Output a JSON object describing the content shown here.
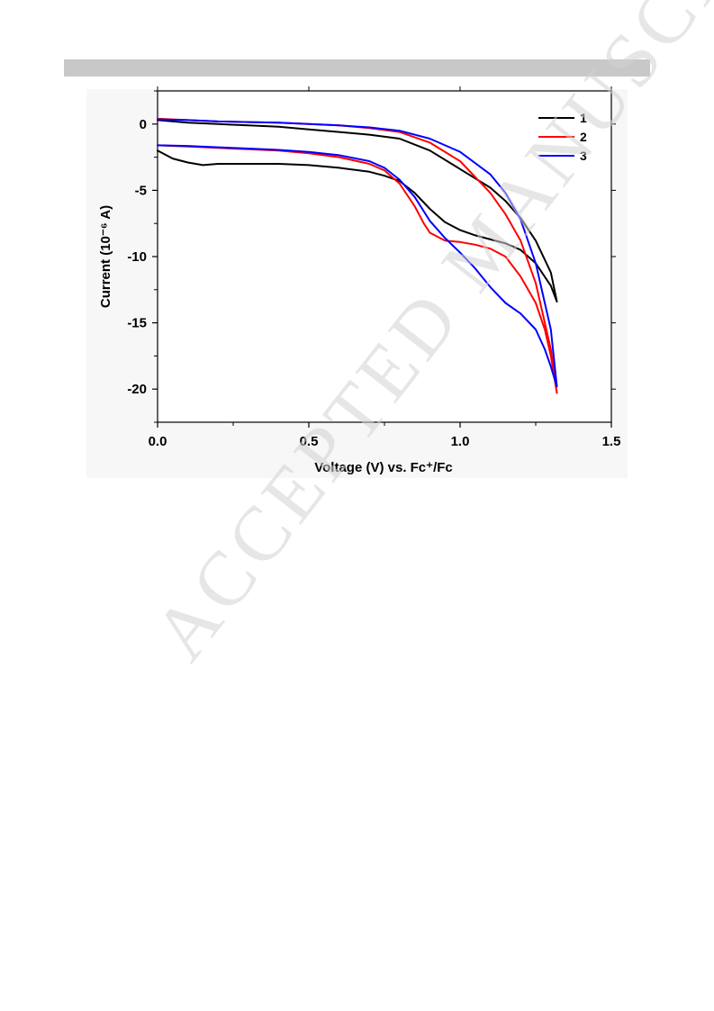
{
  "watermark": "ACCEPTED MANUSCRIPT",
  "chart_data": {
    "type": "line",
    "xlabel": "Voltage (V) vs. Fc⁺/Fc",
    "ylabel": "Current (10⁻⁶ A)",
    "xlim": [
      0.0,
      1.5
    ],
    "ylim": [
      -22.5,
      2.5
    ],
    "xticks": [
      0.0,
      0.5,
      1.0,
      1.5
    ],
    "xtick_labels": [
      "0.0",
      "0.5",
      "1.0",
      "1.5"
    ],
    "yticks": [
      0,
      -5,
      -10,
      -15,
      -20
    ],
    "ytick_labels": [
      "0",
      "-5",
      "-10",
      "-15",
      "-20"
    ],
    "grid": false,
    "legend_position": "top-right",
    "series": [
      {
        "name": "1",
        "color": "#000000",
        "x": [
          0.0,
          0.05,
          0.1,
          0.15,
          0.2,
          0.3,
          0.4,
          0.5,
          0.6,
          0.7,
          0.75,
          0.8,
          0.85,
          0.9,
          0.95,
          1.0,
          1.05,
          1.1,
          1.15,
          1.2,
          1.25,
          1.3,
          1.32,
          1.3,
          1.25,
          1.2,
          1.15,
          1.1,
          1.0,
          0.9,
          0.8,
          0.7,
          0.6,
          0.5,
          0.4,
          0.3,
          0.2,
          0.1,
          0.0
        ],
        "y": [
          -2.0,
          -2.6,
          -2.9,
          -3.1,
          -3.0,
          -3.0,
          -3.0,
          -3.1,
          -3.3,
          -3.6,
          -3.9,
          -4.3,
          -5.2,
          -6.4,
          -7.4,
          -8.0,
          -8.4,
          -8.7,
          -9.0,
          -9.5,
          -10.5,
          -12.2,
          -13.4,
          -11.2,
          -8.8,
          -7.1,
          -5.8,
          -4.8,
          -3.4,
          -2.0,
          -1.1,
          -0.8,
          -0.6,
          -0.4,
          -0.2,
          -0.1,
          0.0,
          0.1,
          0.3
        ]
      },
      {
        "name": "2",
        "color": "#ff0000",
        "x": [
          0.0,
          0.1,
          0.2,
          0.3,
          0.4,
          0.5,
          0.6,
          0.7,
          0.75,
          0.8,
          0.85,
          0.88,
          0.9,
          0.95,
          1.0,
          1.05,
          1.1,
          1.15,
          1.2,
          1.25,
          1.28,
          1.3,
          1.32,
          1.3,
          1.25,
          1.2,
          1.15,
          1.1,
          1.0,
          0.9,
          0.8,
          0.7,
          0.6,
          0.5,
          0.4,
          0.3,
          0.2,
          0.1,
          0.0
        ],
        "y": [
          -1.6,
          -1.7,
          -1.8,
          -1.9,
          -2.0,
          -2.2,
          -2.5,
          -3.0,
          -3.5,
          -4.5,
          -6.2,
          -7.5,
          -8.2,
          -8.8,
          -8.9,
          -9.1,
          -9.4,
          -10.0,
          -11.5,
          -13.5,
          -15.5,
          -17.5,
          -20.3,
          -17.0,
          -12.0,
          -8.8,
          -6.8,
          -5.2,
          -2.8,
          -1.4,
          -0.6,
          -0.3,
          -0.1,
          0.0,
          0.1,
          0.15,
          0.2,
          0.3,
          0.4
        ]
      },
      {
        "name": "3",
        "color": "#0000ff",
        "x": [
          0.0,
          0.1,
          0.2,
          0.3,
          0.4,
          0.5,
          0.6,
          0.7,
          0.75,
          0.8,
          0.85,
          0.9,
          0.95,
          1.0,
          1.05,
          1.1,
          1.15,
          1.2,
          1.25,
          1.28,
          1.3,
          1.32,
          1.3,
          1.25,
          1.2,
          1.15,
          1.1,
          1.0,
          0.9,
          0.8,
          0.7,
          0.6,
          0.5,
          0.4,
          0.3,
          0.2,
          0.1,
          0.0
        ],
        "y": [
          -1.6,
          -1.65,
          -1.75,
          -1.85,
          -1.95,
          -2.1,
          -2.35,
          -2.8,
          -3.3,
          -4.2,
          -5.5,
          -7.3,
          -8.6,
          -9.7,
          -10.9,
          -12.3,
          -13.5,
          -14.3,
          -15.5,
          -17.0,
          -18.3,
          -19.8,
          -15.5,
          -10.5,
          -7.2,
          -5.2,
          -3.8,
          -2.1,
          -1.1,
          -0.5,
          -0.25,
          -0.1,
          0.0,
          0.1,
          0.15,
          0.2,
          0.3,
          0.35
        ]
      }
    ]
  }
}
